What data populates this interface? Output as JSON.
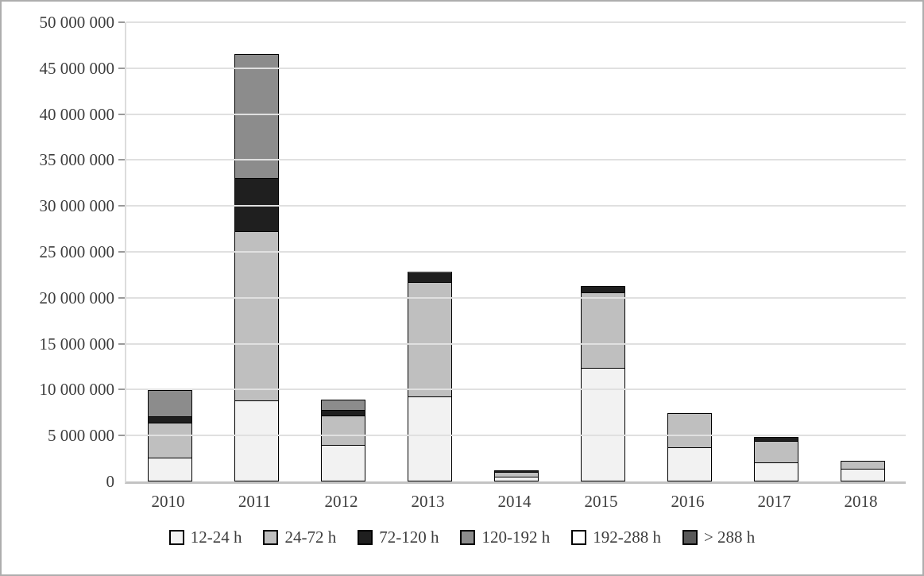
{
  "figure": {
    "background": "#ffffff",
    "border_color": "#aeaeae",
    "text_color": "#3d3d3d",
    "gridline_color": "#e0e0e0",
    "axis_line_color": "#c3c3c3"
  },
  "chart_data": {
    "type": "bar",
    "subtype": "stacked-vertical",
    "title": "",
    "xlabel": "",
    "ylabel": "",
    "grid": true,
    "legend_position": "bottom",
    "categories": [
      "2010",
      "2011",
      "2012",
      "2013",
      "2014",
      "2015",
      "2016",
      "2017",
      "2018"
    ],
    "series": [
      {
        "name": "12-24 h",
        "color": "#f2f2f2",
        "values": [
          2600000,
          8800000,
          4000000,
          9300000,
          500000,
          12400000,
          3700000,
          2100000,
          1400000
        ]
      },
      {
        "name": "24-72 h",
        "color": "#bfbfbf",
        "values": [
          3850000,
          18500000,
          3250000,
          12500000,
          650000,
          8300000,
          3800000,
          2400000,
          950000
        ]
      },
      {
        "name": "72-120 h",
        "color": "#1f1f1f",
        "values": [
          850000,
          5900000,
          750000,
          1000000,
          250000,
          800000,
          0,
          500000,
          0
        ]
      },
      {
        "name": "120-192 h",
        "color": "#8c8c8c",
        "values": [
          2900000,
          13600000,
          1200000,
          200000,
          0,
          0,
          0,
          0,
          0
        ]
      },
      {
        "name": "192-288 h",
        "color": "#ffffff",
        "values": [
          0,
          0,
          0,
          0,
          0,
          0,
          0,
          0,
          0
        ]
      },
      {
        "name": "> 288 h",
        "color": "#595959",
        "values": [
          0,
          0,
          0,
          0,
          0,
          0,
          0,
          0,
          0
        ]
      }
    ],
    "totals": [
      10200000,
      46800000,
      9200000,
      23000000,
      1400000,
      21500000,
      7500000,
      5000000,
      2350000
    ],
    "y_axis": {
      "min": 0,
      "max": 50000000,
      "step": 5000000,
      "tick_labels": [
        "50 000 000",
        "45 000 000",
        "40 000 000",
        "35 000 000",
        "30 000 000",
        "25 000 000",
        "20 000 000",
        "15 000 000",
        "10 000 000",
        "5 000 000",
        "0"
      ]
    }
  }
}
